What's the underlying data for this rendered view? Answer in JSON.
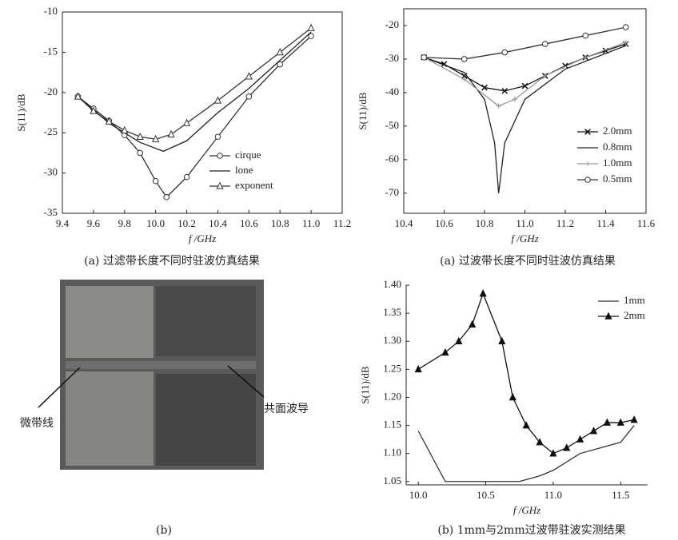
{
  "chart_data": [
    {
      "type": "line",
      "ylabel": "S(11)/dB",
      "xlabel": "f /GHz",
      "caption": "(a) 过滤带长度不同时驻波仿真结果",
      "xlim": [
        9.4,
        11.2
      ],
      "ylim": [
        -35,
        -10
      ],
      "box": true,
      "xticks": [
        9.4,
        9.6,
        9.8,
        {
          "value": 10,
          "label": "10.0"
        },
        10.2,
        10.4,
        10.6,
        10.8,
        {
          "value": 11,
          "label": "11.0"
        },
        11.2
      ],
      "yticks": [
        -35,
        -30,
        -25,
        -20,
        -15,
        -10
      ],
      "series": [
        {
          "name": "cirque",
          "color": "#333333",
          "marker": "circle",
          "dash": "",
          "x": [
            9.5,
            9.6,
            9.7,
            9.8,
            9.9,
            10.0,
            10.07,
            10.2,
            10.4,
            10.6,
            10.8,
            11.0
          ],
          "values": [
            -20.5,
            -22,
            -23.5,
            -25.3,
            -27.5,
            -31,
            -33,
            -30.5,
            -25.5,
            -20.5,
            -16.5,
            -13
          ]
        },
        {
          "name": "lone",
          "color": "#222222",
          "marker": "none",
          "dash": "",
          "x": [
            9.5,
            9.7,
            9.9,
            10.05,
            10.2,
            10.4,
            10.6,
            10.8,
            11.0
          ],
          "values": [
            -20.5,
            -23.8,
            -26.2,
            -27.3,
            -26,
            -22.5,
            -19.5,
            -16,
            -12.5
          ]
        },
        {
          "name": "exponent",
          "color": "#333333",
          "marker": "triangle",
          "dash": "",
          "x": [
            9.5,
            9.6,
            9.7,
            9.8,
            9.9,
            10.0,
            10.1,
            10.2,
            10.4,
            10.6,
            10.8,
            11.0
          ],
          "values": [
            -20.5,
            -22.3,
            -23.6,
            -24.7,
            -25.5,
            -25.8,
            -25.2,
            -23.8,
            -21,
            -18,
            -15,
            -12
          ]
        }
      ]
    },
    {
      "type": "line",
      "ylabel": "S(11)/dB",
      "xlabel": "f /GHz",
      "caption": "(a) 过波带长度不同时驻波仿真结果",
      "xlim": [
        10.4,
        11.6
      ],
      "ylim": [
        -76,
        -15
      ],
      "box": true,
      "xticks": [
        10.4,
        10.6,
        10.8,
        {
          "value": 11,
          "label": "11.0"
        },
        11.2,
        11.4,
        11.6
      ],
      "yticks": [
        -70,
        -60,
        -50,
        -40,
        -30,
        -20
      ],
      "series": [
        {
          "name": "2.0mm",
          "color": "#111111",
          "marker": "x",
          "dash": "",
          "x": [
            10.5,
            10.6,
            10.7,
            10.8,
            10.9,
            11.0,
            11.1,
            11.2,
            11.3,
            11.4,
            11.5
          ],
          "values": [
            -29.5,
            -31.5,
            -35,
            -38.5,
            -39.5,
            -38,
            -35,
            -32,
            -29.5,
            -27.5,
            -25.5
          ]
        },
        {
          "name": "0.8mm",
          "color": "#222222",
          "marker": "none",
          "dash": "",
          "x": [
            10.5,
            10.7,
            10.8,
            10.85,
            10.87,
            10.9,
            11.0,
            11.2,
            11.5
          ],
          "values": [
            -29.5,
            -34,
            -42,
            -55,
            -70,
            -55,
            -42,
            -33,
            -26
          ]
        },
        {
          "name": "1.0mm",
          "color": "#999999",
          "marker": "plus",
          "dash": "",
          "x": [
            10.5,
            10.7,
            10.87,
            10.95,
            11.1,
            11.3,
            11.5
          ],
          "values": [
            -29.5,
            -36,
            -44,
            -42,
            -35,
            -29.5,
            -25
          ]
        },
        {
          "name": "0.5mm",
          "color": "#333333",
          "marker": "circle",
          "dash": "",
          "x": [
            10.5,
            10.7,
            10.9,
            11.1,
            11.3,
            11.5
          ],
          "values": [
            -29.5,
            -30,
            -28,
            -25.5,
            -23,
            -20.5
          ]
        }
      ]
    },
    {
      "type": "line",
      "ylabel": "S(11)/dB",
      "xlabel": "f /GHz",
      "caption": "(b) 1mm与2mm过波带驻波实测结果",
      "xlim": [
        9.91,
        11.7
      ],
      "ylim": [
        1.044,
        1.4
      ],
      "box": false,
      "xticks": [
        {
          "value": 10,
          "label": "10.0"
        },
        10.5,
        {
          "value": 11,
          "label": "11.0"
        },
        11.5
      ],
      "yticks": [
        1.05,
        {
          "value": 1.1,
          "label": "1.10"
        },
        1.15,
        {
          "value": 1.2,
          "label": "1.20"
        },
        1.25,
        {
          "value": 1.3,
          "label": "1.30"
        },
        1.35,
        {
          "value": 1.4,
          "label": "1.40"
        }
      ],
      "series": [
        {
          "name": "1mm",
          "color": "#333333",
          "marker": "none",
          "dash": "",
          "x": [
            10.0,
            10.2,
            10.5,
            10.6,
            10.75,
            10.9,
            11.0,
            11.2,
            11.5,
            11.6
          ],
          "values": [
            1.14,
            1.05,
            1.05,
            1.05,
            1.05,
            1.06,
            1.07,
            1.1,
            1.12,
            1.15
          ]
        },
        {
          "name": "2mm",
          "color": "#111111",
          "marker": "triangle-fill",
          "dash": "",
          "x": [
            10.0,
            10.2,
            10.3,
            10.4,
            10.48,
            10.62,
            10.7,
            10.8,
            10.9,
            11.0,
            11.1,
            11.2,
            11.3,
            11.4,
            11.5,
            11.6
          ],
          "values": [
            1.25,
            1.28,
            1.3,
            1.33,
            1.385,
            1.3,
            1.2,
            1.15,
            1.12,
            1.1,
            1.11,
            1.125,
            1.14,
            1.155,
            1.155,
            1.16
          ]
        }
      ]
    }
  ],
  "photo": {
    "labels": [
      "微带线",
      "共面波导"
    ],
    "caption": "(b)"
  }
}
